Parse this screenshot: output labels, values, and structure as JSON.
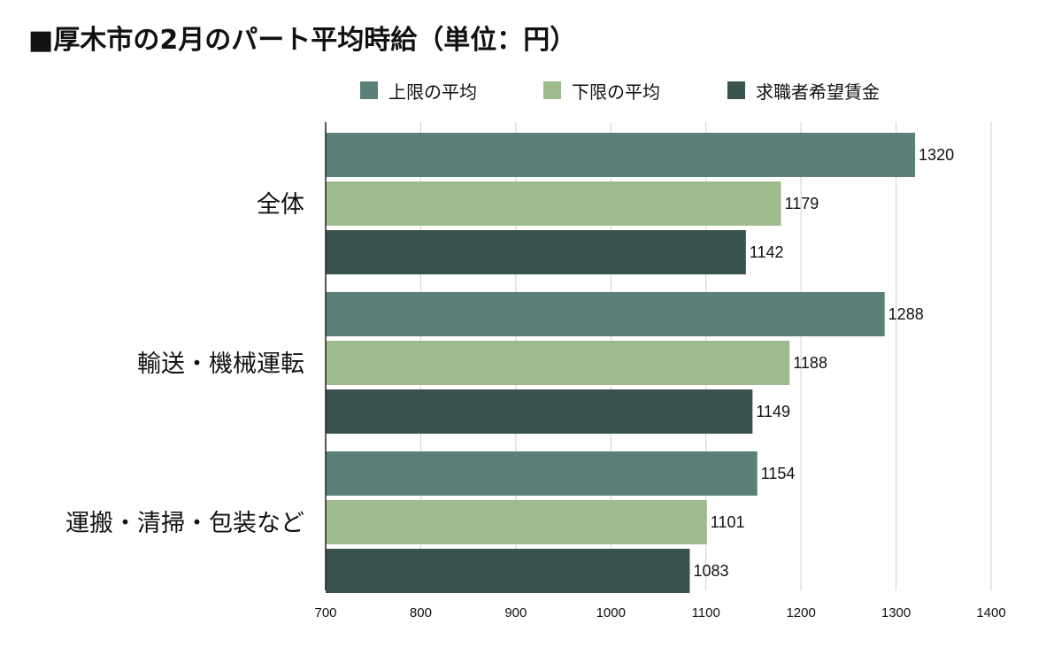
{
  "header": {
    "title": "■厚木市の2月のパート平均時給（単位：円）"
  },
  "chart_data": {
    "type": "bar",
    "orientation": "horizontal",
    "title": "■厚木市の2月のパート平均時給（単位：円）",
    "categories": [
      "全体",
      "輸送・機械運転",
      "運搬・清掃・包装など"
    ],
    "series": [
      {
        "name": "上限の平均",
        "color": "#5a8179",
        "values": [
          1320,
          1288,
          1154
        ]
      },
      {
        "name": "下限の平均",
        "color": "#9dbb8d",
        "values": [
          1179,
          1188,
          1101
        ]
      },
      {
        "name": "求職者希望賃金",
        "color": "#38524e",
        "values": [
          1142,
          1149,
          1083
        ]
      }
    ],
    "xlim": [
      700,
      1400
    ],
    "xticks": [
      700,
      800,
      900,
      1000,
      1100,
      1200,
      1300,
      1400
    ],
    "grid": true,
    "legend_position": "top",
    "data_labels": true
  }
}
